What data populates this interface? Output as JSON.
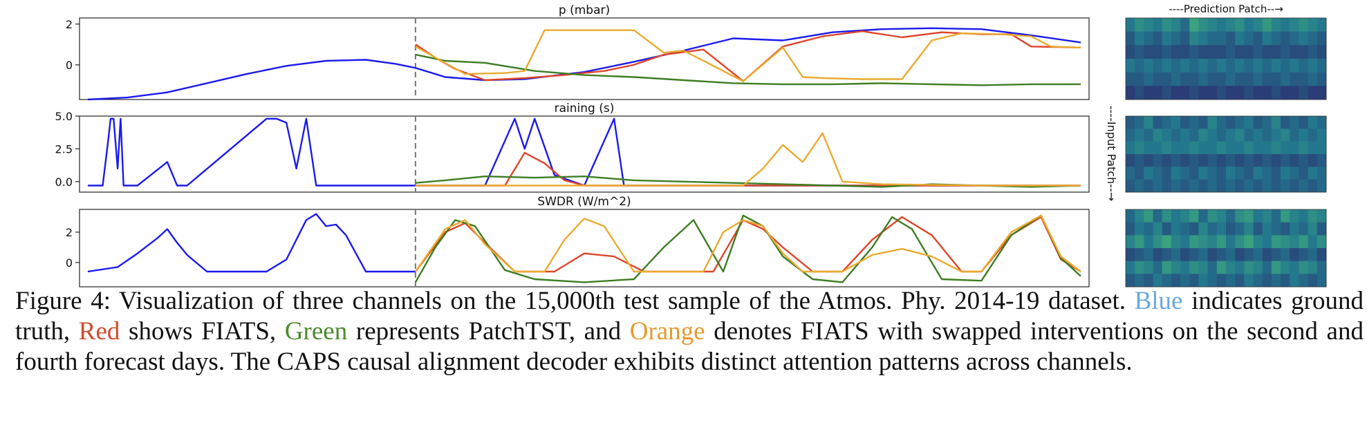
{
  "figure": {
    "heatmap_title": "----Prediction Patch--→",
    "heatmap_side_label": "----Input Patch--→",
    "colors": {
      "ground_truth": "#1a1aee",
      "fiats": "#e0452a",
      "patchtst": "#3d7d23",
      "fiats_swapped": "#eaaa30",
      "forecast_divider": "#777777",
      "heatmap_low": "#2b2e70",
      "heatmap_mid": "#24788e",
      "heatmap_high": "#3fae7a"
    }
  },
  "chart_data": [
    {
      "type": "line",
      "title": "p (mbar)",
      "yticks": [
        "2",
        "0"
      ],
      "ytick_values": [
        2,
        0
      ],
      "ylim": [
        -1.7,
        2.3
      ],
      "forecast_start_fraction": 0.33,
      "series": [
        {
          "name": "Blue",
          "color": "#1a1aee",
          "x": [
            0,
            0.04,
            0.08,
            0.12,
            0.16,
            0.2,
            0.24,
            0.28,
            0.31,
            0.33,
            0.36,
            0.4,
            0.44,
            0.5,
            0.55,
            0.6,
            0.65,
            0.7,
            0.75,
            0.8,
            0.85,
            0.9,
            0.95,
            1
          ],
          "y": [
            -1.7,
            -1.6,
            -1.35,
            -0.9,
            -0.45,
            -0.05,
            0.2,
            0.25,
            0.05,
            -0.15,
            -0.6,
            -0.75,
            -0.7,
            -0.35,
            0.15,
            0.7,
            1.3,
            1.2,
            1.6,
            1.75,
            1.8,
            1.75,
            1.45,
            1.1
          ]
        },
        {
          "name": "Red",
          "color": "#e0452a",
          "x": [
            0.33,
            0.35,
            0.37,
            0.4,
            0.44,
            0.48,
            0.52,
            0.55,
            0.58,
            0.62,
            0.66,
            0.7,
            0.74,
            0.78,
            0.82,
            0.86,
            0.9,
            0.93,
            0.95,
            1
          ],
          "y": [
            1.0,
            0.35,
            -0.2,
            -0.75,
            -0.65,
            -0.5,
            -0.3,
            0.0,
            0.5,
            0.75,
            -0.8,
            0.9,
            1.4,
            1.65,
            1.35,
            1.6,
            1.5,
            1.5,
            0.9,
            0.85
          ]
        },
        {
          "name": "Green",
          "color": "#3d7d23",
          "x": [
            0.33,
            0.36,
            0.4,
            0.45,
            0.5,
            0.55,
            0.6,
            0.65,
            0.7,
            0.75,
            0.8,
            0.85,
            0.9,
            0.95,
            1
          ],
          "y": [
            0.5,
            0.2,
            0.1,
            -0.3,
            -0.5,
            -0.6,
            -0.75,
            -0.9,
            -0.95,
            -0.95,
            -0.9,
            -0.95,
            -1.0,
            -0.95,
            -0.95
          ]
        },
        {
          "name": "Orange",
          "color": "#eaaa30",
          "x": [
            0.33,
            0.38,
            0.42,
            0.44,
            0.46,
            0.55,
            0.58,
            0.6,
            0.66,
            0.7,
            0.72,
            0.74,
            0.78,
            0.82,
            0.85,
            0.88,
            0.92,
            0.95,
            0.97,
            1
          ],
          "y": [
            0.9,
            -0.45,
            -0.4,
            -0.3,
            1.7,
            1.7,
            0.6,
            0.7,
            -0.8,
            0.85,
            -0.6,
            -0.65,
            -0.7,
            -0.7,
            1.2,
            1.55,
            1.5,
            1.4,
            0.9,
            0.85
          ]
        }
      ]
    },
    {
      "type": "line",
      "title": "raining (s)",
      "yticks": [
        "5.0",
        "2.5",
        "0.0"
      ],
      "ytick_values": [
        5.0,
        2.5,
        0.0
      ],
      "ylim": [
        -0.8,
        5.0
      ],
      "forecast_start_fraction": 0.33,
      "series": [
        {
          "name": "Blue",
          "color": "#1a1aee",
          "x": [
            0,
            0.015,
            0.02,
            0.023,
            0.026,
            0.03,
            0.033,
            0.036,
            0.04,
            0.045,
            0.05,
            0.08,
            0.09,
            0.1,
            0.18,
            0.19,
            0.2,
            0.21,
            0.22,
            0.23,
            0.24,
            0.26,
            0.3,
            0.33,
            0.36,
            0.4,
            0.43,
            0.44,
            0.45,
            0.47,
            0.5,
            0.53,
            0.54,
            0.55,
            0.57,
            0.6,
            0.7,
            0.8,
            0.9,
            1
          ],
          "y": [
            -0.3,
            -0.3,
            2.8,
            4.8,
            4.8,
            1.0,
            4.8,
            -0.3,
            -0.3,
            -0.3,
            -0.3,
            1.5,
            -0.3,
            -0.3,
            4.8,
            4.8,
            4.5,
            1.0,
            4.8,
            -0.3,
            -0.3,
            -0.3,
            -0.3,
            -0.3,
            -0.3,
            -0.3,
            4.8,
            2.5,
            4.8,
            0.5,
            -0.3,
            4.8,
            -0.3,
            -0.3,
            -0.3,
            -0.3,
            -0.3,
            -0.3,
            -0.3,
            -0.3
          ]
        },
        {
          "name": "Red",
          "color": "#e0452a",
          "x": [
            0.33,
            0.4,
            0.42,
            0.44,
            0.46,
            0.48,
            0.5,
            0.6,
            0.7,
            0.8,
            0.9,
            1
          ],
          "y": [
            -0.3,
            -0.3,
            -0.3,
            2.2,
            1.4,
            0.1,
            -0.3,
            -0.3,
            -0.3,
            -0.3,
            -0.3,
            -0.3
          ]
        },
        {
          "name": "Green",
          "color": "#3d7d23",
          "x": [
            0.33,
            0.36,
            0.4,
            0.45,
            0.5,
            0.55,
            0.6,
            0.65,
            0.7,
            0.75,
            0.8,
            0.85,
            0.9,
            0.95,
            1
          ],
          "y": [
            -0.1,
            0.1,
            0.4,
            0.3,
            0.4,
            0.1,
            0.0,
            -0.1,
            -0.2,
            -0.3,
            -0.4,
            -0.2,
            -0.3,
            -0.4,
            -0.3
          ]
        },
        {
          "name": "Orange",
          "color": "#eaaa30",
          "x": [
            0.33,
            0.5,
            0.6,
            0.66,
            0.68,
            0.7,
            0.72,
            0.74,
            0.76,
            0.8,
            0.9,
            1
          ],
          "y": [
            -0.3,
            -0.3,
            -0.3,
            -0.3,
            1.0,
            2.8,
            1.5,
            3.7,
            0.0,
            -0.2,
            -0.3,
            -0.3
          ]
        }
      ]
    },
    {
      "type": "line",
      "title": "SWDR (W/m^2)",
      "yticks": [
        "2",
        "0"
      ],
      "ytick_values": [
        2,
        0
      ],
      "ylim": [
        -1.6,
        3.5
      ],
      "forecast_start_fraction": 0.33,
      "series": [
        {
          "name": "Blue",
          "color": "#1a1aee",
          "x": [
            0,
            0.03,
            0.05,
            0.07,
            0.08,
            0.09,
            0.1,
            0.12,
            0.15,
            0.18,
            0.2,
            0.22,
            0.23,
            0.24,
            0.25,
            0.26,
            0.28,
            0.3,
            0.33
          ],
          "y": [
            -0.6,
            -0.3,
            0.6,
            1.6,
            2.2,
            1.3,
            0.5,
            -0.6,
            -0.6,
            -0.6,
            0.2,
            2.8,
            3.2,
            2.4,
            2.5,
            1.8,
            -0.6,
            -0.6,
            -0.6
          ]
        },
        {
          "name": "Red",
          "color": "#e0452a",
          "x": [
            0.33,
            0.36,
            0.38,
            0.4,
            0.43,
            0.47,
            0.5,
            0.53,
            0.56,
            0.6,
            0.63,
            0.66,
            0.68,
            0.7,
            0.73,
            0.76,
            0.79,
            0.82,
            0.85,
            0.88,
            0.9,
            0.93,
            0.96,
            0.98,
            1
          ],
          "y": [
            -0.6,
            2.0,
            2.6,
            1.3,
            -0.6,
            -0.6,
            0.6,
            0.4,
            -0.6,
            -0.6,
            -0.6,
            2.8,
            2.2,
            1.0,
            -0.6,
            -0.6,
            1.5,
            3.0,
            1.8,
            -0.6,
            -0.6,
            1.8,
            3.0,
            0.2,
            -0.6
          ]
        },
        {
          "name": "Green",
          "color": "#3d7d23",
          "x": [
            0.33,
            0.35,
            0.37,
            0.39,
            0.42,
            0.45,
            0.5,
            0.55,
            0.58,
            0.61,
            0.64,
            0.66,
            0.68,
            0.7,
            0.73,
            0.76,
            0.79,
            0.81,
            0.83,
            0.86,
            0.9,
            0.93,
            0.96,
            0.98,
            1
          ],
          "y": [
            -1.3,
            1.0,
            2.8,
            2.4,
            -0.5,
            -1.1,
            -1.3,
            -1.1,
            1.0,
            2.8,
            -0.6,
            3.1,
            2.4,
            0.4,
            -1.1,
            -1.3,
            1.0,
            3.0,
            2.2,
            -1.1,
            -1.2,
            1.8,
            3.1,
            0.3,
            -0.9
          ]
        },
        {
          "name": "Orange",
          "color": "#eaaa30",
          "x": [
            0.33,
            0.36,
            0.38,
            0.4,
            0.43,
            0.46,
            0.48,
            0.5,
            0.52,
            0.55,
            0.58,
            0.62,
            0.64,
            0.66,
            0.68,
            0.7,
            0.72,
            0.74,
            0.76,
            0.79,
            0.82,
            0.85,
            0.88,
            0.9,
            0.93,
            0.96,
            0.98,
            1
          ],
          "y": [
            -0.6,
            2.2,
            2.8,
            1.2,
            -0.6,
            -0.6,
            1.5,
            2.9,
            2.4,
            -0.6,
            -0.6,
            -0.6,
            2.0,
            2.8,
            2.4,
            0.6,
            -0.6,
            -0.6,
            -0.6,
            0.5,
            0.9,
            0.4,
            -0.6,
            -0.6,
            2.0,
            3.1,
            0.4,
            -0.6
          ]
        }
      ]
    },
    {
      "type": "heatmap",
      "title": "",
      "rows": 6,
      "cols": 22,
      "values": [
        [
          0.5,
          0.7,
          0.6,
          0.5,
          0.7,
          0.6,
          0.4,
          0.9,
          0.7,
          0.6,
          0.5,
          0.6,
          0.7,
          0.5,
          0.6,
          0.8,
          0.6,
          0.5,
          0.6,
          0.7,
          0.6,
          0.5
        ],
        [
          0.3,
          0.5,
          0.4,
          0.3,
          0.5,
          0.4,
          0.3,
          0.6,
          0.5,
          0.4,
          0.4,
          0.3,
          0.5,
          0.4,
          0.3,
          0.5,
          0.4,
          0.3,
          0.4,
          0.5,
          0.4,
          0.3
        ],
        [
          0.2,
          0.3,
          0.2,
          0.2,
          0.3,
          0.2,
          0.2,
          0.3,
          0.2,
          0.2,
          0.2,
          0.3,
          0.2,
          0.2,
          0.3,
          0.2,
          0.2,
          0.3,
          0.2,
          0.2,
          0.3,
          0.2
        ],
        [
          0.5,
          0.4,
          0.5,
          0.4,
          0.5,
          0.4,
          0.5,
          0.4,
          0.5,
          0.4,
          0.5,
          0.4,
          0.5,
          0.4,
          0.5,
          0.4,
          0.5,
          0.4,
          0.5,
          0.4,
          0.5,
          0.4
        ],
        [
          0.3,
          0.3,
          0.4,
          0.3,
          0.3,
          0.4,
          0.3,
          0.3,
          0.4,
          0.3,
          0.3,
          0.4,
          0.3,
          0.3,
          0.4,
          0.3,
          0.3,
          0.4,
          0.3,
          0.3,
          0.4,
          0.3
        ],
        [
          0.1,
          0.2,
          0.1,
          0.1,
          0.2,
          0.1,
          0.1,
          0.2,
          0.1,
          0.1,
          0.2,
          0.1,
          0.1,
          0.2,
          0.1,
          0.1,
          0.2,
          0.1,
          0.1,
          0.2,
          0.1,
          0.1
        ]
      ]
    },
    {
      "type": "heatmap",
      "title": "",
      "rows": 6,
      "cols": 22,
      "values": [
        [
          0.3,
          0.4,
          0.6,
          0.3,
          0.4,
          0.5,
          0.3,
          0.4,
          0.3,
          0.6,
          0.4,
          0.3,
          0.4,
          0.5,
          0.3,
          0.4,
          0.6,
          0.3,
          0.4,
          0.3,
          0.5,
          0.4
        ],
        [
          0.4,
          0.5,
          0.4,
          0.6,
          0.5,
          0.4,
          0.5,
          0.4,
          0.6,
          0.5,
          0.4,
          0.5,
          0.6,
          0.4,
          0.5,
          0.4,
          0.5,
          0.6,
          0.4,
          0.5,
          0.4,
          0.5
        ],
        [
          0.5,
          0.6,
          0.5,
          0.5,
          0.6,
          0.5,
          0.5,
          0.6,
          0.5,
          0.5,
          0.6,
          0.5,
          0.5,
          0.6,
          0.5,
          0.5,
          0.6,
          0.5,
          0.5,
          0.6,
          0.5,
          0.5
        ],
        [
          0.2,
          0.3,
          0.2,
          0.3,
          0.2,
          0.3,
          0.2,
          0.3,
          0.2,
          0.3,
          0.2,
          0.3,
          0.2,
          0.3,
          0.2,
          0.3,
          0.2,
          0.3,
          0.2,
          0.3,
          0.2,
          0.3
        ],
        [
          0.4,
          0.3,
          0.5,
          0.4,
          0.3,
          0.5,
          0.4,
          0.3,
          0.5,
          0.4,
          0.3,
          0.5,
          0.4,
          0.3,
          0.5,
          0.4,
          0.3,
          0.5,
          0.4,
          0.3,
          0.5,
          0.4
        ],
        [
          0.3,
          0.4,
          0.3,
          0.4,
          0.3,
          0.4,
          0.3,
          0.4,
          0.3,
          0.4,
          0.3,
          0.4,
          0.3,
          0.4,
          0.3,
          0.4,
          0.3,
          0.4,
          0.3,
          0.4,
          0.3,
          0.4
        ]
      ]
    },
    {
      "type": "heatmap",
      "title": "",
      "rows": 6,
      "cols": 22,
      "values": [
        [
          0.4,
          0.6,
          0.8,
          0.4,
          0.7,
          0.5,
          0.6,
          0.8,
          0.4,
          0.7,
          0.6,
          0.4,
          0.7,
          0.8,
          0.5,
          0.6,
          0.4,
          0.8,
          0.6,
          0.5,
          0.7,
          0.6
        ],
        [
          0.3,
          0.5,
          0.4,
          0.6,
          0.3,
          0.5,
          0.4,
          0.3,
          0.6,
          0.4,
          0.5,
          0.3,
          0.4,
          0.6,
          0.3,
          0.5,
          0.4,
          0.3,
          0.5,
          0.4,
          0.6,
          0.3
        ],
        [
          0.6,
          0.8,
          0.5,
          0.7,
          0.9,
          0.6,
          0.5,
          0.8,
          0.7,
          0.6,
          0.8,
          0.5,
          0.7,
          0.9,
          0.6,
          0.5,
          0.8,
          0.7,
          0.6,
          0.8,
          0.5,
          0.7
        ],
        [
          0.2,
          0.3,
          0.4,
          0.2,
          0.3,
          0.4,
          0.2,
          0.3,
          0.4,
          0.2,
          0.3,
          0.4,
          0.2,
          0.3,
          0.4,
          0.2,
          0.3,
          0.4,
          0.2,
          0.3,
          0.4,
          0.2
        ],
        [
          0.5,
          0.7,
          0.6,
          0.4,
          0.8,
          0.6,
          0.5,
          0.7,
          0.6,
          0.4,
          0.8,
          0.6,
          0.5,
          0.7,
          0.6,
          0.4,
          0.8,
          0.6,
          0.5,
          0.7,
          0.6,
          0.4
        ],
        [
          0.3,
          0.4,
          0.3,
          0.5,
          0.4,
          0.3,
          0.4,
          0.3,
          0.5,
          0.4,
          0.3,
          0.4,
          0.3,
          0.5,
          0.4,
          0.3,
          0.4,
          0.3,
          0.5,
          0.4,
          0.3,
          0.4
        ]
      ]
    }
  ],
  "caption": {
    "part1": "Figure 4: Visualization of three channels on the 15,000th test sample of the Atmos. Phy. 2014-19 dataset. ",
    "blue_word": "Blue",
    "part2": " indicates ground truth, ",
    "red_word": "Red",
    "part3": " shows FIATS, ",
    "green_word": "Green",
    "part4": " represents PatchTST, and ",
    "orange_word": "Orange",
    "part5": " denotes FIATS with swapped interventions on the second and fourth forecast days. The CAPS causal alignment decoder exhibits distinct attention patterns across channels."
  }
}
